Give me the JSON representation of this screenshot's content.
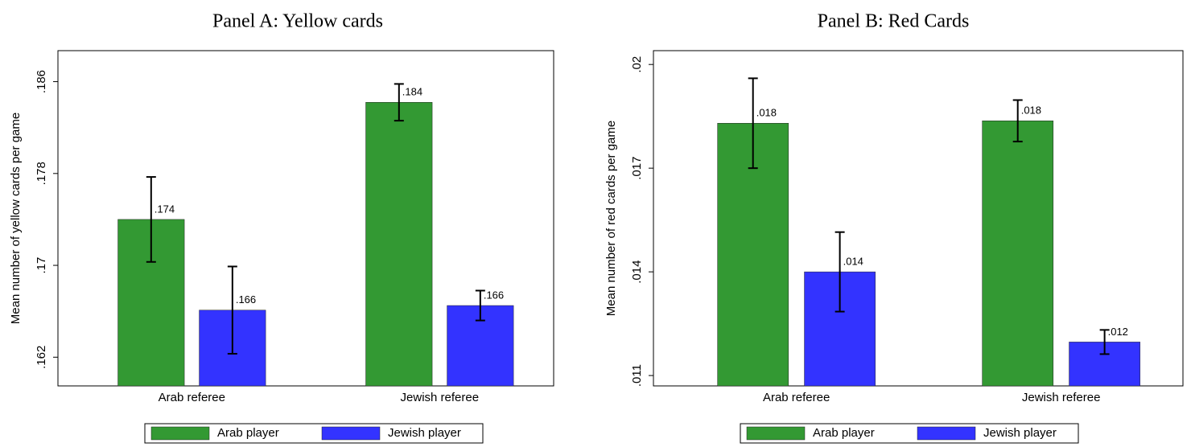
{
  "chart_data": [
    {
      "type": "bar",
      "title": "Panel A: Yellow cards",
      "y_label": "Mean number of yellow cards per game",
      "categories": [
        "Arab referee",
        "Jewish referee"
      ],
      "series": [
        {
          "name": "Arab player",
          "color": "#339933",
          "values": [
            0.174,
            0.1842
          ],
          "value_labels": [
            ".174",
            ".184"
          ],
          "errors": [
            0.0037,
            0.0016
          ]
        },
        {
          "name": "Jewish player",
          "color": "#3333ff",
          "values": [
            0.1661,
            0.1665
          ],
          "value_labels": [
            ".166",
            ".166"
          ],
          "errors": [
            0.0038,
            0.0013
          ]
        }
      ],
      "ylim": [
        0.1595,
        0.1887
      ],
      "yticks": [
        {
          "value": 0.162,
          "label": ".162"
        },
        {
          "value": 0.17,
          "label": ".17"
        },
        {
          "value": 0.178,
          "label": ".178"
        },
        {
          "value": 0.186,
          "label": ".186"
        }
      ]
    },
    {
      "type": "bar",
      "title": "Panel B: Red Cards",
      "y_label": "Mean number of red cards per game",
      "categories": [
        "Arab referee",
        "Jewish referee"
      ],
      "series": [
        {
          "name": "Arab player",
          "color": "#339933",
          "values": [
            0.0183,
            0.01837
          ],
          "value_labels": [
            ".018",
            ".018"
          ],
          "errors": [
            0.0013,
            0.0006
          ]
        },
        {
          "name": "Jewish player",
          "color": "#3333ff",
          "values": [
            0.014,
            0.01197
          ],
          "value_labels": [
            ".014",
            ".012"
          ],
          "errors": [
            0.00115,
            0.00035
          ]
        }
      ],
      "ylim": [
        0.0107,
        0.0204
      ],
      "yticks": [
        {
          "value": 0.011,
          "label": ".011"
        },
        {
          "value": 0.014,
          "label": ".014"
        },
        {
          "value": 0.017,
          "label": ".017"
        },
        {
          "value": 0.02,
          "label": ".02"
        }
      ]
    }
  ]
}
